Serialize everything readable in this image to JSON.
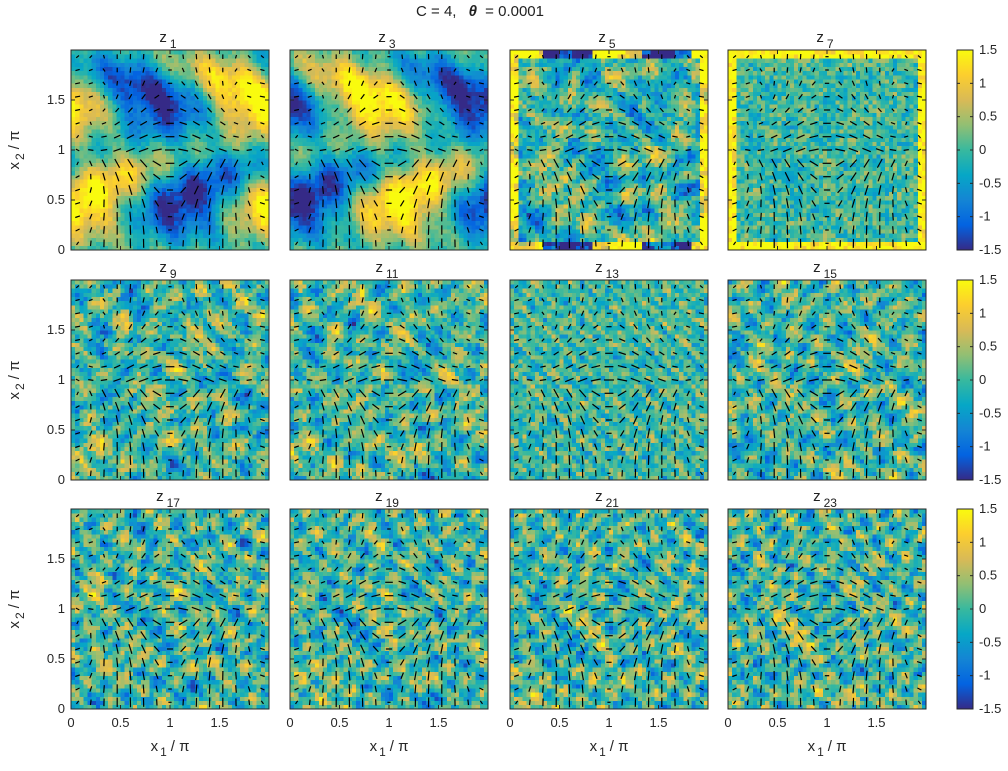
{
  "figure": {
    "title_c": "C = 4,",
    "title_theta_symbol": "θ",
    "title_theta_value": "= 0.0001"
  },
  "chart_data": {
    "type": "heatmap",
    "layout": {
      "rows": 3,
      "cols": 4
    },
    "panels": [
      {
        "base": "z",
        "sub": "1"
      },
      {
        "base": "z",
        "sub": "3"
      },
      {
        "base": "z",
        "sub": "5"
      },
      {
        "base": "z",
        "sub": "7"
      },
      {
        "base": "z",
        "sub": "9"
      },
      {
        "base": "z",
        "sub": "11"
      },
      {
        "base": "z",
        "sub": "13"
      },
      {
        "base": "z",
        "sub": "15"
      },
      {
        "base": "z",
        "sub": "17"
      },
      {
        "base": "z",
        "sub": "19"
      },
      {
        "base": "z",
        "sub": "21"
      },
      {
        "base": "z",
        "sub": "23"
      }
    ],
    "x_axis": {
      "label_base": "x",
      "label_sub": "1",
      "label_tail": "/ π",
      "ticks": [
        "0",
        "0.5",
        "1",
        "1.5"
      ],
      "tick_values": [
        0,
        0.5,
        1,
        1.5
      ],
      "range": [
        0,
        2
      ]
    },
    "y_axis": {
      "label_base": "x",
      "label_sub": "2",
      "label_tail": "/ π",
      "ticks": [
        "0",
        "0.5",
        "1",
        "1.5"
      ],
      "tick_values": [
        0,
        0.5,
        1,
        1.5
      ],
      "range": [
        0,
        2
      ]
    },
    "colorbar": {
      "range": [
        -1.5,
        1.5
      ],
      "ticks": [
        "1.5",
        "1",
        "0.5",
        "0",
        "-0.5",
        "-1",
        "-1.5"
      ],
      "tick_values": [
        1.5,
        1,
        0.5,
        0,
        -0.5,
        -1,
        -1.5
      ],
      "colormap": "parula",
      "colors": [
        "#352a87",
        "#0363e1",
        "#1485d4",
        "#06a7c6",
        "#38b99e",
        "#92bf73",
        "#d9ba56",
        "#fcce2e",
        "#f9fb0e"
      ]
    },
    "overlay": "quiver (velocity field arrows)",
    "grid": false
  },
  "colors": {
    "axes": "#262626",
    "arrows": "#000000",
    "background": "#ffffff"
  }
}
